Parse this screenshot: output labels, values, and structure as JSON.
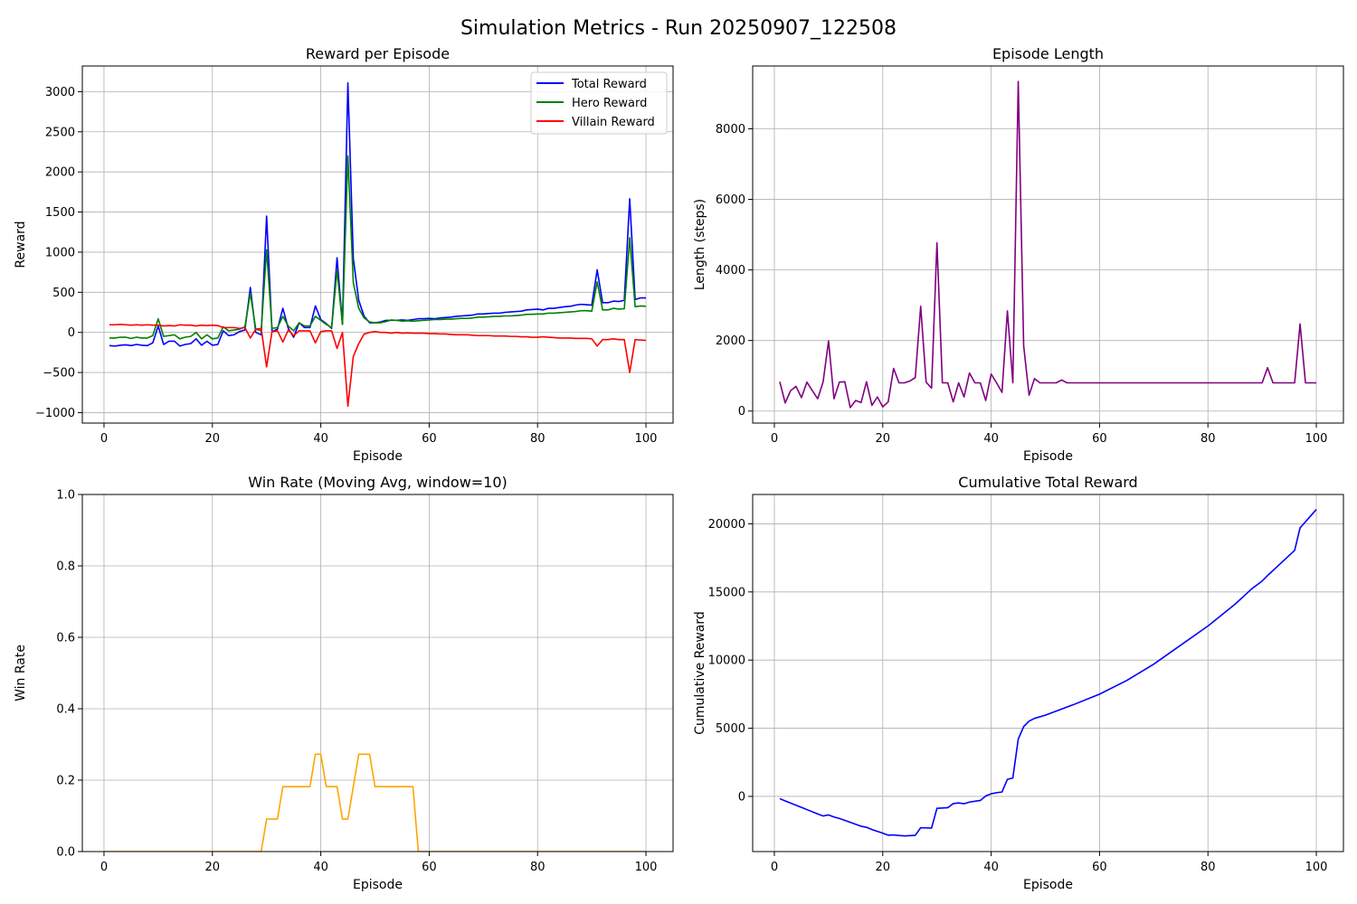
{
  "figure": {
    "title": "Simulation Metrics - Run 20250907_122508"
  },
  "colors": {
    "total": "#0000ff",
    "hero": "#008000",
    "villain": "#ff0000",
    "length": "#800080",
    "winrate": "#ffa500",
    "cumulative": "#0000ff",
    "grid": "#b0b0b0"
  },
  "chart_data": [
    {
      "type": "line",
      "title": "Reward per Episode",
      "xlabel": "Episode",
      "ylabel": "Reward",
      "xlim": [
        -4,
        105
      ],
      "ylim": [
        -1130,
        3320
      ],
      "xticks": [
        0,
        20,
        40,
        60,
        80,
        100
      ],
      "yticks": [
        -1000,
        -500,
        0,
        500,
        1000,
        1500,
        2000,
        2500,
        3000
      ],
      "grid": true,
      "legend": "top-right",
      "x": [
        1,
        2,
        3,
        4,
        5,
        6,
        7,
        8,
        9,
        10,
        11,
        12,
        13,
        14,
        15,
        16,
        17,
        18,
        19,
        20,
        21,
        22,
        23,
        24,
        25,
        26,
        27,
        28,
        29,
        30,
        31,
        32,
        33,
        34,
        35,
        36,
        37,
        38,
        39,
        40,
        41,
        42,
        43,
        44,
        45,
        46,
        47,
        48,
        49,
        50,
        51,
        52,
        53,
        54,
        55,
        56,
        57,
        58,
        59,
        60,
        61,
        62,
        63,
        64,
        65,
        66,
        67,
        68,
        69,
        70,
        71,
        72,
        73,
        74,
        75,
        76,
        77,
        78,
        79,
        80,
        81,
        82,
        83,
        84,
        85,
        86,
        87,
        88,
        89,
        90,
        91,
        92,
        93,
        94,
        95,
        96,
        97,
        98,
        99,
        100
      ],
      "series": [
        {
          "name": "Total Reward",
          "color_key": "total",
          "values": [
            -165,
            -170,
            -160,
            -155,
            -165,
            -150,
            -160,
            -165,
            -130,
            80,
            -150,
            -110,
            -110,
            -170,
            -150,
            -140,
            -80,
            -160,
            -110,
            -160,
            -150,
            20,
            -40,
            -30,
            10,
            30,
            560,
            0,
            -30,
            1450,
            10,
            40,
            300,
            50,
            -60,
            120,
            60,
            60,
            330,
            160,
            110,
            50,
            930,
            100,
            3110,
            920,
            400,
            200,
            120,
            120,
            130,
            150,
            150,
            150,
            155,
            150,
            160,
            170,
            170,
            175,
            170,
            180,
            185,
            190,
            200,
            205,
            210,
            215,
            230,
            230,
            235,
            240,
            240,
            250,
            255,
            260,
            265,
            280,
            285,
            290,
            280,
            300,
            300,
            310,
            320,
            325,
            340,
            350,
            345,
            340,
            780,
            370,
            370,
            390,
            385,
            400,
            1665,
            410,
            430,
            430
          ]
        },
        {
          "name": "Hero Reward",
          "color_key": "hero",
          "values": [
            -70,
            -70,
            -60,
            -60,
            -75,
            -60,
            -70,
            -70,
            -40,
            170,
            -50,
            -40,
            -30,
            -80,
            -60,
            -50,
            0,
            -80,
            -30,
            -80,
            -70,
            70,
            20,
            30,
            40,
            70,
            490,
            40,
            20,
            1030,
            50,
            60,
            200,
            80,
            20,
            120,
            80,
            80,
            200,
            150,
            100,
            60,
            770,
            100,
            2200,
            620,
            300,
            180,
            130,
            120,
            120,
            135,
            155,
            150,
            140,
            145,
            140,
            145,
            150,
            155,
            160,
            160,
            165,
            165,
            170,
            175,
            175,
            180,
            190,
            190,
            195,
            200,
            200,
            205,
            205,
            210,
            215,
            225,
            225,
            230,
            230,
            240,
            240,
            245,
            250,
            255,
            260,
            270,
            270,
            265,
            630,
            280,
            280,
            300,
            290,
            295,
            1180,
            320,
            330,
            325
          ]
        },
        {
          "name": "Villain Reward",
          "color_key": "villain",
          "values": [
            95,
            95,
            100,
            95,
            90,
            95,
            90,
            95,
            90,
            90,
            80,
            85,
            80,
            95,
            90,
            90,
            80,
            90,
            85,
            90,
            85,
            60,
            60,
            60,
            50,
            60,
            -70,
            40,
            50,
            -430,
            10,
            20,
            -120,
            30,
            -40,
            20,
            20,
            20,
            -130,
            10,
            20,
            20,
            -200,
            0,
            -920,
            -300,
            -140,
            -20,
            0,
            10,
            0,
            0,
            -10,
            0,
            -10,
            -5,
            -10,
            -10,
            -10,
            -15,
            -15,
            -20,
            -20,
            -25,
            -30,
            -30,
            -30,
            -35,
            -40,
            -40,
            -40,
            -45,
            -45,
            -45,
            -50,
            -50,
            -55,
            -55,
            -60,
            -60,
            -55,
            -60,
            -65,
            -70,
            -70,
            -70,
            -75,
            -75,
            -75,
            -80,
            -170,
            -90,
            -90,
            -80,
            -90,
            -90,
            -500,
            -90,
            -95,
            -100
          ]
        }
      ]
    },
    {
      "type": "line",
      "title": "Episode Length",
      "xlabel": "Episode",
      "ylabel": "Length (steps)",
      "xlim": [
        -4,
        105
      ],
      "ylim": [
        -340,
        9780
      ],
      "xticks": [
        0,
        20,
        40,
        60,
        80,
        100
      ],
      "yticks": [
        0,
        2000,
        4000,
        6000,
        8000
      ],
      "grid": true,
      "x": [
        1,
        2,
        3,
        4,
        5,
        6,
        7,
        8,
        9,
        10,
        11,
        12,
        13,
        14,
        15,
        16,
        17,
        18,
        19,
        20,
        21,
        22,
        23,
        24,
        25,
        26,
        27,
        28,
        29,
        30,
        31,
        32,
        33,
        34,
        35,
        36,
        37,
        38,
        39,
        40,
        41,
        42,
        43,
        44,
        45,
        46,
        47,
        48,
        49,
        50,
        51,
        52,
        53,
        54,
        55,
        56,
        57,
        58,
        59,
        60,
        61,
        62,
        63,
        64,
        65,
        66,
        67,
        68,
        69,
        70,
        71,
        72,
        73,
        74,
        75,
        76,
        77,
        78,
        79,
        80,
        81,
        82,
        83,
        84,
        85,
        86,
        87,
        88,
        89,
        90,
        91,
        92,
        93,
        94,
        95,
        96,
        97,
        98,
        99,
        100
      ],
      "series": [
        {
          "color_key": "length",
          "values": [
            830,
            230,
            580,
            700,
            380,
            820,
            580,
            350,
            830,
            1990,
            350,
            820,
            830,
            100,
            300,
            240,
            830,
            160,
            400,
            120,
            260,
            1210,
            800,
            800,
            850,
            950,
            2970,
            820,
            650,
            4770,
            800,
            800,
            260,
            800,
            400,
            1080,
            800,
            800,
            300,
            1050,
            800,
            530,
            2840,
            800,
            9340,
            1850,
            450,
            920,
            800,
            800,
            800,
            800,
            880,
            800,
            800,
            800,
            800,
            800,
            800,
            800,
            800,
            800,
            800,
            800,
            800,
            800,
            800,
            800,
            800,
            800,
            800,
            800,
            800,
            800,
            800,
            800,
            800,
            800,
            800,
            800,
            800,
            800,
            800,
            800,
            800,
            800,
            800,
            800,
            800,
            800,
            1230,
            800,
            800,
            800,
            800,
            800,
            2470,
            800,
            800,
            800
          ]
        }
      ]
    },
    {
      "type": "line",
      "title": "Win Rate (Moving Avg, window=10)",
      "xlabel": "Episode",
      "ylabel": "Win Rate",
      "xlim": [
        -4,
        105
      ],
      "ylim": [
        0,
        1.0
      ],
      "xticks": [
        0,
        20,
        40,
        60,
        80,
        100
      ],
      "yticks": [
        0.0,
        0.2,
        0.4,
        0.6,
        0.8,
        1.0
      ],
      "grid": true,
      "x": [
        0,
        29,
        30,
        32,
        33,
        38,
        39,
        40,
        41,
        43,
        44,
        45,
        46,
        47,
        49,
        50,
        57,
        58,
        100
      ],
      "series": [
        {
          "color_key": "winrate",
          "values": [
            0,
            0,
            0.0909,
            0.0909,
            0.1818,
            0.1818,
            0.2727,
            0.2727,
            0.1818,
            0.1818,
            0.0909,
            0.0909,
            0.1818,
            0.2727,
            0.2727,
            0.1818,
            0.1818,
            0,
            0
          ]
        }
      ]
    },
    {
      "type": "line",
      "title": "Cumulative Total Reward",
      "xlabel": "Episode",
      "ylabel": "Cumulative Reward",
      "xlim": [
        -4,
        105
      ],
      "ylim": [
        -4050,
        22150
      ],
      "xticks": [
        0,
        20,
        40,
        60,
        80,
        100
      ],
      "yticks": [
        0,
        5000,
        10000,
        15000,
        20000
      ],
      "grid": true,
      "x": [
        1,
        2,
        4,
        6,
        8,
        9,
        10,
        11,
        12,
        14,
        16,
        17,
        18,
        20,
        21,
        22,
        23,
        24,
        26,
        27,
        29,
        30,
        32,
        33,
        34,
        35,
        36,
        38,
        39,
        40,
        41,
        42,
        43,
        44,
        45,
        46,
        47,
        48,
        50,
        55,
        60,
        65,
        70,
        75,
        80,
        85,
        88,
        90,
        91,
        96,
        97,
        100
      ],
      "series": [
        {
          "color_key": "cumulative",
          "values": [
            -165,
            -335,
            -650,
            -970,
            -1290,
            -1440,
            -1360,
            -1510,
            -1620,
            -1900,
            -2190,
            -2270,
            -2430,
            -2700,
            -2850,
            -2830,
            -2870,
            -2900,
            -2860,
            -2300,
            -2330,
            -880,
            -830,
            -530,
            -480,
            -540,
            -420,
            -300,
            30,
            190,
            270,
            320,
            1250,
            1350,
            4200,
            5120,
            5520,
            5720,
            5960,
            6700,
            7500,
            8500,
            9700,
            11100,
            12500,
            14100,
            15200,
            15800,
            16200,
            18050,
            19700,
            21050
          ]
        }
      ]
    }
  ]
}
